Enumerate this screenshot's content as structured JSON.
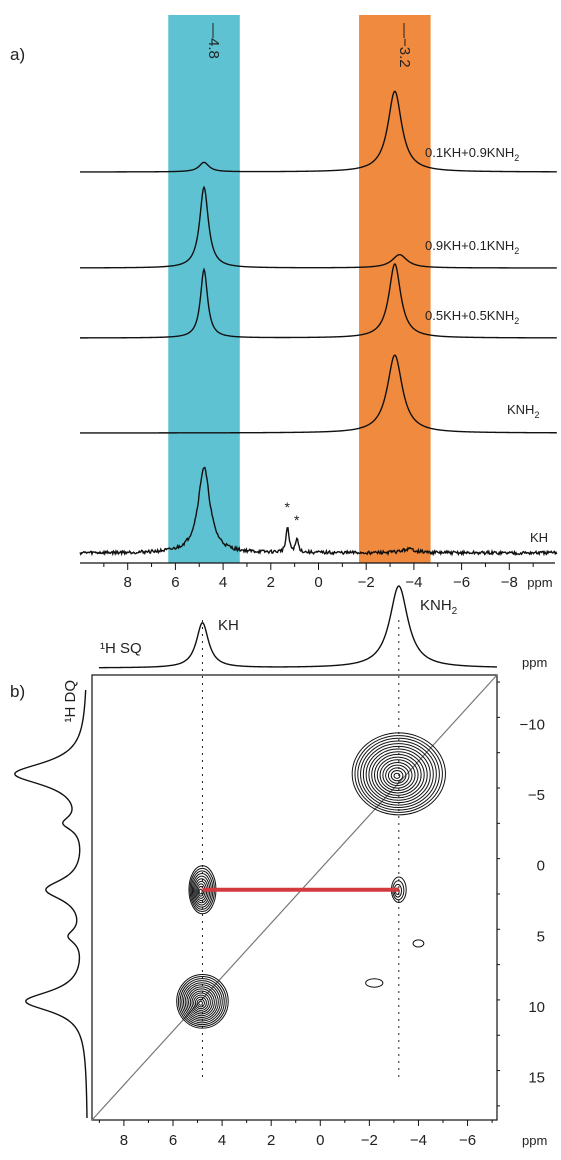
{
  "chart_data": [
    {
      "type": "line",
      "panel_label": "a)",
      "x_unit": "ppm",
      "xlim": [
        10,
        -10
      ],
      "x_ticks": [
        8,
        6,
        4,
        2,
        0,
        -2,
        -4,
        -6,
        -8
      ],
      "x_tick_labels": [
        "8",
        "6",
        "4",
        "2",
        "0",
        "−2",
        "−4",
        "−6",
        "−8"
      ],
      "x_unit_label": "ppm",
      "highlight_bands": [
        {
          "from": 6.3,
          "to": 3.3,
          "color": "#5fc2d2",
          "label": "—4.8"
        },
        {
          "from": -1.7,
          "to": -4.7,
          "color": "#f08a3e",
          "label": "—−3.2"
        }
      ],
      "series": [
        {
          "name": "0.1KH+0.9KNH₂",
          "label_main": "0.1KH+0.9KNH",
          "label_sub": "2",
          "peaks": [
            {
              "center": 4.8,
              "height": 0.1,
              "width": 0.25
            },
            {
              "center": -3.2,
              "height": 0.85,
              "width": 0.35
            }
          ]
        },
        {
          "name": "0.9KH+0.1KNH₂",
          "label_main": "0.9KH+0.1KNH",
          "label_sub": "2",
          "peaks": [
            {
              "center": 4.8,
              "height": 0.85,
              "width": 0.22
            },
            {
              "center": -3.4,
              "height": 0.14,
              "width": 0.38
            }
          ]
        },
        {
          "name": "0.5KH+0.5KNH₂",
          "label_main": "0.5KH+0.5KNH",
          "label_sub": "2",
          "peaks": [
            {
              "center": 4.8,
              "height": 0.72,
              "width": 0.18
            },
            {
              "center": -3.2,
              "height": 0.78,
              "width": 0.3
            }
          ]
        },
        {
          "name": "KNH₂",
          "label_main": "KNH",
          "label_sub": "2",
          "peaks": [
            {
              "center": -3.2,
              "height": 0.82,
              "width": 0.38
            }
          ]
        },
        {
          "name": "KH",
          "label_main": "KH",
          "label_sub": "",
          "noisy": true,
          "peaks": [
            {
              "center": 4.8,
              "height": 0.9,
              "width": 0.3
            },
            {
              "center": 1.3,
              "height": 0.28,
              "width": 0.07
            },
            {
              "center": 0.9,
              "height": 0.14,
              "width": 0.07
            },
            {
              "center": -3.8,
              "height": 0.04,
              "width": 0.35
            }
          ]
        }
      ],
      "annotations": [
        {
          "text": "*",
          "x": 1.3
        },
        {
          "text": "*",
          "x": 0.9
        }
      ]
    },
    {
      "type": "heatmap",
      "subtype": "2D DQ-SQ correlation contour",
      "panel_label": "b)",
      "x_label": "¹H SQ",
      "y_label": "¹H DQ",
      "xlim": [
        9.3,
        -7.2
      ],
      "ylim": [
        -13.5,
        18
      ],
      "x_ticks": [
        8,
        6,
        4,
        2,
        0,
        -2,
        -4,
        -6
      ],
      "x_tick_labels": [
        "8",
        "6",
        "4",
        "2",
        "0",
        "−2",
        "−4",
        "−6"
      ],
      "y_ticks": [
        -10,
        -5,
        0,
        5,
        10,
        15
      ],
      "y_tick_labels": [
        "−10",
        "−5",
        "0",
        "5",
        "10",
        "15"
      ],
      "unit_label": "ppm",
      "top_projection_peaks": [
        {
          "label": "KH",
          "center": 4.8,
          "height": 0.55,
          "width": 0.3
        },
        {
          "label": "KNH",
          "label_sub": "2",
          "center": -3.2,
          "height": 1.0,
          "width": 0.45
        }
      ],
      "left_projection_peaks": [
        {
          "center": -6.5,
          "height": 1.0,
          "width": 1.0
        },
        {
          "center": -3.0,
          "height": 0.25,
          "width": 0.6
        },
        {
          "center": 1.7,
          "height": 0.55,
          "width": 0.9
        },
        {
          "center": 5.0,
          "height": 0.2,
          "width": 0.6
        },
        {
          "center": 9.6,
          "height": 0.85,
          "width": 0.9
        }
      ],
      "contour_peaks": [
        {
          "x": -3.2,
          "y": -6.5,
          "rx": 1.9,
          "ry": 2.9,
          "levels": 16
        },
        {
          "x": 4.8,
          "y": 1.7,
          "rx": 0.55,
          "ry": 1.7,
          "levels": 10
        },
        {
          "x": -3.2,
          "y": 1.7,
          "rx": 0.3,
          "ry": 0.9,
          "levels": 4
        },
        {
          "x": 4.8,
          "y": 9.6,
          "rx": 1.05,
          "ry": 1.9,
          "levels": 14
        },
        {
          "x": -4.0,
          "y": 5.5,
          "rx": 0.22,
          "ry": 0.25,
          "levels": 1
        },
        {
          "x": -2.2,
          "y": 8.3,
          "rx": 0.35,
          "ry": 0.3,
          "levels": 1
        }
      ],
      "guide_lines": [
        {
          "x": 4.8
        },
        {
          "x": -3.2
        }
      ],
      "diagonal": true,
      "correlation_line": {
        "x1": 4.8,
        "x2": -3.2,
        "y": 1.7,
        "color": "#d33a3f"
      }
    }
  ]
}
